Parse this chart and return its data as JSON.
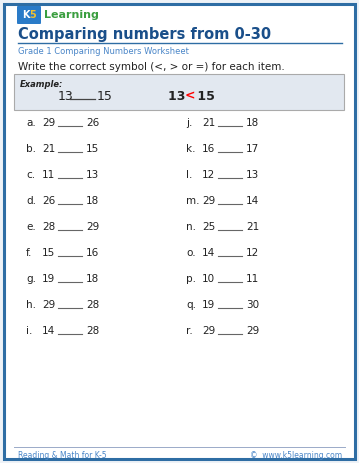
{
  "title": "Comparing numbers from 0-30",
  "subtitle": "Grade 1 Comparing Numbers Worksheet",
  "instruction": "Write the correct symbol (<, > or =) for each item.",
  "bg_color": "#eef2f7",
  "border_color": "#2e6da4",
  "white": "#ffffff",
  "title_color": "#1a4f8a",
  "subtitle_color": "#4a86c8",
  "text_color": "#222222",
  "footer_color": "#4a86c8",
  "example_bg": "#e2e8f0",
  "example_border": "#aaaaaa",
  "left_items": [
    [
      "a.",
      "29",
      "26"
    ],
    [
      "b.",
      "21",
      "15"
    ],
    [
      "c.",
      "11",
      "13"
    ],
    [
      "d.",
      "26",
      "18"
    ],
    [
      "e.",
      "28",
      "29"
    ],
    [
      "f.",
      "15",
      "16"
    ],
    [
      "g.",
      "19",
      "18"
    ],
    [
      "h.",
      "29",
      "28"
    ],
    [
      "i.",
      "14",
      "28"
    ]
  ],
  "right_items": [
    [
      "j.",
      "21",
      "18"
    ],
    [
      "k.",
      "16",
      "17"
    ],
    [
      "l.",
      "12",
      "13"
    ],
    [
      "m.",
      "29",
      "14"
    ],
    [
      "n.",
      "25",
      "21"
    ],
    [
      "o.",
      "14",
      "12"
    ],
    [
      "p.",
      "10",
      "11"
    ],
    [
      "q.",
      "19",
      "30"
    ],
    [
      "r.",
      "29",
      "29"
    ]
  ],
  "footer_left": "Reading & Math for K-5",
  "footer_right": "©  www.k5learning.com"
}
